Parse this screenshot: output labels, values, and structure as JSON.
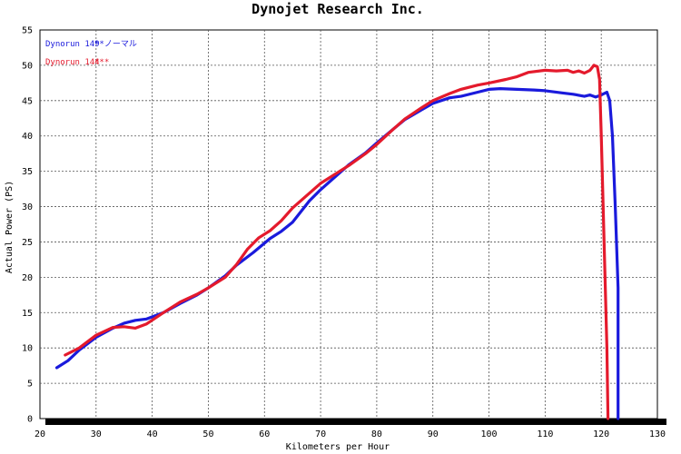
{
  "chart_data": {
    "type": "line",
    "title": "Dynojet  Research  Inc.",
    "xlabel": "Kilometers per Hour",
    "ylabel": "Actual Power (PS)",
    "xlim": [
      20,
      130
    ],
    "ylim": [
      0,
      55
    ],
    "x_ticks": [
      "20",
      "30",
      "40",
      "50",
      "60",
      "70",
      "80",
      "90",
      "100",
      "110",
      "120",
      "130"
    ],
    "y_ticks": [
      "0",
      "5",
      "10",
      "15",
      "20",
      "25",
      "30",
      "35",
      "40",
      "45",
      "50",
      "55"
    ],
    "grid": true,
    "legend_position": "top-left",
    "series": [
      {
        "name": "Dynorun 149",
        "legend_note": "**ノーマル",
        "color": "#1a1adc",
        "points": [
          [
            23,
            7.2
          ],
          [
            25,
            8.2
          ],
          [
            27,
            9.7
          ],
          [
            30,
            11.5
          ],
          [
            33,
            12.8
          ],
          [
            35,
            13.5
          ],
          [
            37,
            13.9
          ],
          [
            39,
            14.1
          ],
          [
            42,
            15.0
          ],
          [
            45,
            16.3
          ],
          [
            48,
            17.5
          ],
          [
            50,
            18.5
          ],
          [
            53,
            20.2
          ],
          [
            55,
            21.7
          ],
          [
            58,
            23.5
          ],
          [
            61,
            25.5
          ],
          [
            63,
            26.5
          ],
          [
            65,
            27.8
          ],
          [
            68,
            30.8
          ],
          [
            70,
            32.4
          ],
          [
            73,
            34.5
          ],
          [
            75,
            35.9
          ],
          [
            78,
            37.6
          ],
          [
            80,
            39.0
          ],
          [
            83,
            41.0
          ],
          [
            85,
            42.3
          ],
          [
            88,
            43.7
          ],
          [
            90,
            44.6
          ],
          [
            93,
            45.4
          ],
          [
            95,
            45.6
          ],
          [
            98,
            46.2
          ],
          [
            100,
            46.6
          ],
          [
            102,
            46.7
          ],
          [
            105,
            46.6
          ],
          [
            108,
            46.5
          ],
          [
            110,
            46.4
          ],
          [
            113,
            46.1
          ],
          [
            115,
            45.9
          ],
          [
            117,
            45.6
          ],
          [
            118,
            45.8
          ],
          [
            119,
            45.5
          ],
          [
            120,
            45.8
          ],
          [
            121,
            46.2
          ],
          [
            121.5,
            45.0
          ],
          [
            122,
            40.0
          ],
          [
            122.5,
            30.0
          ],
          [
            123,
            18.5
          ],
          [
            123,
            0
          ]
        ]
      },
      {
        "name": "Dynorun 144",
        "legend_note": "***",
        "color": "#e41a2c",
        "points": [
          [
            24.5,
            9.0
          ],
          [
            27,
            10.0
          ],
          [
            30,
            11.8
          ],
          [
            33,
            12.9
          ],
          [
            35,
            13.0
          ],
          [
            37,
            12.8
          ],
          [
            39,
            13.4
          ],
          [
            42,
            15.0
          ],
          [
            45,
            16.5
          ],
          [
            48,
            17.6
          ],
          [
            50,
            18.5
          ],
          [
            53,
            20.0
          ],
          [
            55,
            21.8
          ],
          [
            57,
            24.0
          ],
          [
            59,
            25.6
          ],
          [
            61,
            26.6
          ],
          [
            63,
            28.0
          ],
          [
            65,
            29.8
          ],
          [
            68,
            31.9
          ],
          [
            70,
            33.3
          ],
          [
            73,
            34.8
          ],
          [
            75,
            35.8
          ],
          [
            78,
            37.5
          ],
          [
            80,
            38.8
          ],
          [
            83,
            41.0
          ],
          [
            85,
            42.4
          ],
          [
            88,
            44.0
          ],
          [
            90,
            45.0
          ],
          [
            93,
            46.0
          ],
          [
            95,
            46.6
          ],
          [
            98,
            47.2
          ],
          [
            100,
            47.5
          ],
          [
            103,
            48.0
          ],
          [
            105,
            48.4
          ],
          [
            107,
            49.0
          ],
          [
            110,
            49.3
          ],
          [
            112,
            49.2
          ],
          [
            114,
            49.3
          ],
          [
            115,
            49.0
          ],
          [
            116,
            49.2
          ],
          [
            117,
            48.9
          ],
          [
            118,
            49.3
          ],
          [
            118.7,
            50.0
          ],
          [
            119.3,
            49.8
          ],
          [
            119.7,
            48.0
          ],
          [
            120,
            40.0
          ],
          [
            120.5,
            25.0
          ],
          [
            121,
            10.0
          ],
          [
            121.2,
            0
          ]
        ]
      }
    ]
  }
}
